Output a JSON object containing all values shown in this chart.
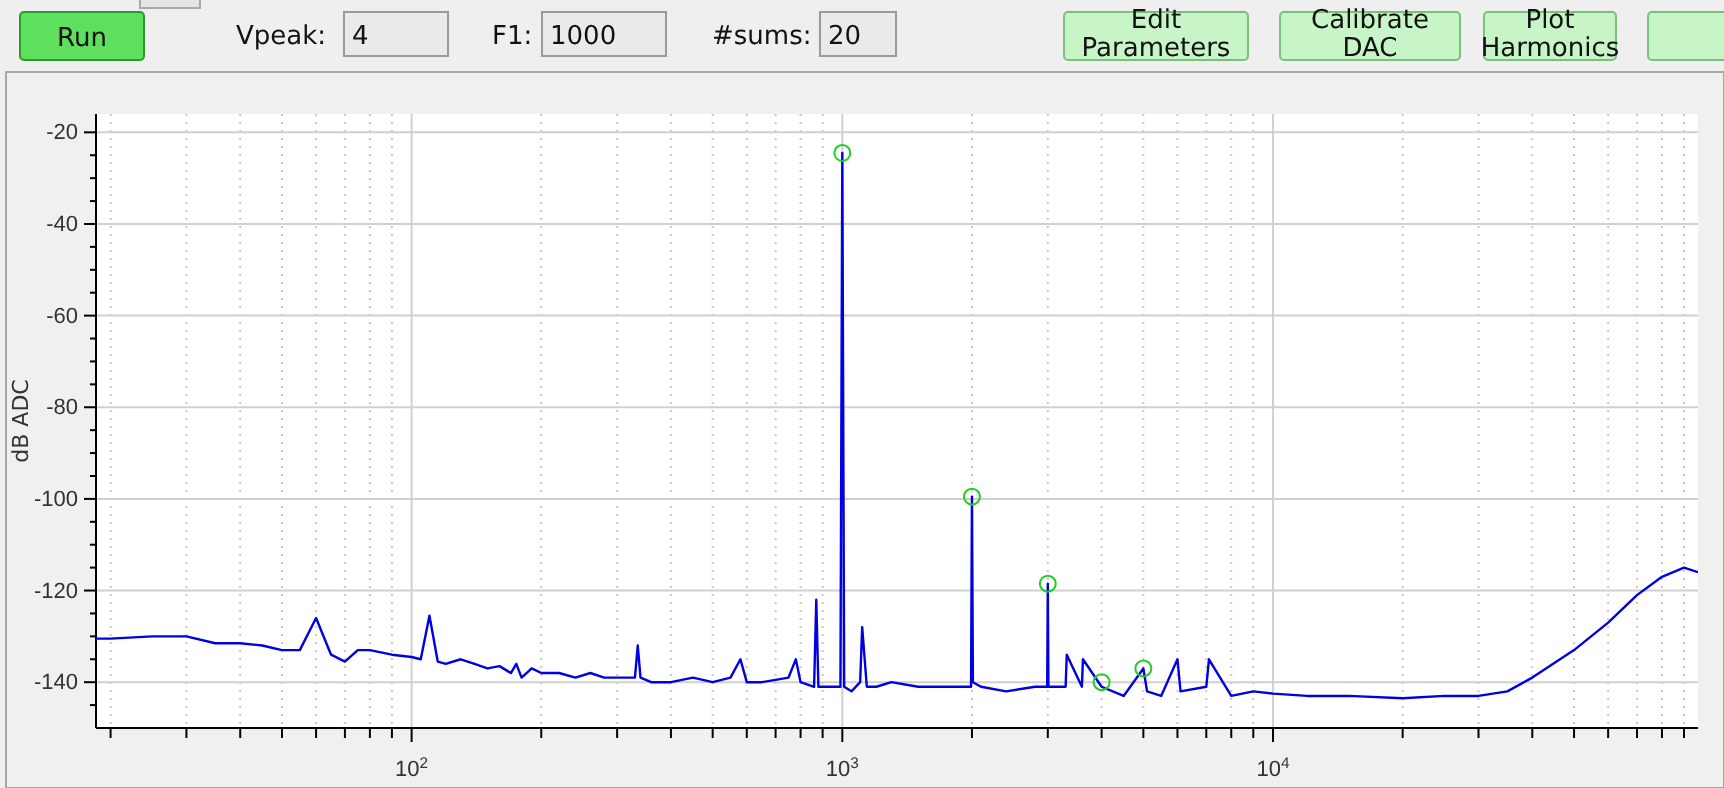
{
  "chart_data": {
    "type": "line",
    "ylabel": "dB ADC",
    "annotations": [
      "Run",
      "Vpeak:",
      "4",
      "F1:",
      "1000",
      "#sums:",
      "20",
      "Edit Parameters",
      "Calibrate DAC",
      "Plot Harmonics"
    ],
    "log": "x",
    "grid": true,
    "xlim": [
      18.5,
      97000
    ],
    "ylim": [
      -150,
      -16
    ],
    "xticks": [
      {
        "value": 20,
        "label": null
      },
      {
        "value": 30,
        "label": null
      },
      {
        "value": 40,
        "label": null
      },
      {
        "value": 50,
        "label": null
      },
      {
        "value": 60,
        "label": null
      },
      {
        "value": 70,
        "label": null
      },
      {
        "value": 80,
        "label": null
      },
      {
        "value": 90,
        "label": null
      },
      {
        "value": 100,
        "label": "10$^{2}$"
      },
      {
        "value": 200,
        "label": null
      },
      {
        "value": 300,
        "label": null
      },
      {
        "value": 400,
        "label": null
      },
      {
        "value": 500,
        "label": null
      },
      {
        "value": 600,
        "label": null
      },
      {
        "value": 700,
        "label": null
      },
      {
        "value": 800,
        "label": null
      },
      {
        "value": 900,
        "label": null
      },
      {
        "value": 1000,
        "label": "10$^{3}$"
      },
      {
        "value": 2000,
        "label": null
      },
      {
        "value": 3000,
        "label": null
      },
      {
        "value": 4000,
        "label": null
      },
      {
        "value": 5000,
        "label": null
      },
      {
        "value": 6000,
        "label": null
      },
      {
        "value": 7000,
        "label": null
      },
      {
        "value": 8000,
        "label": null
      },
      {
        "value": 9000,
        "label": null
      },
      {
        "value": 10000,
        "label": "10$^{4}$"
      },
      {
        "value": 20000,
        "label": null
      },
      {
        "value": 30000,
        "label": null
      },
      {
        "value": 40000,
        "label": null
      },
      {
        "value": 50000,
        "label": null
      },
      {
        "value": 60000,
        "label": null
      },
      {
        "value": 70000,
        "label": null
      },
      {
        "value": 80000,
        "label": null
      },
      {
        "value": 90000,
        "label": null
      }
    ],
    "yticks": [
      -20,
      {
        "value": -25,
        "label": null
      },
      {
        "value": -30,
        "label": null
      },
      {
        "value": -35,
        "label": null
      },
      -40,
      {
        "value": -45,
        "label": null
      },
      {
        "value": -50,
        "label": null
      },
      {
        "value": -55,
        "label": null
      },
      -60,
      {
        "value": -65,
        "label": null
      },
      {
        "value": -70,
        "label": null
      },
      {
        "value": -75,
        "label": null
      },
      -80,
      {
        "value": -85,
        "label": null
      },
      {
        "value": -90,
        "label": null
      },
      {
        "value": -95,
        "label": null
      },
      -100,
      {
        "value": -105,
        "label": null
      },
      {
        "value": -110,
        "label": null
      },
      {
        "value": -115,
        "label": null
      },
      -120,
      {
        "value": -125,
        "label": null
      },
      {
        "value": -130,
        "label": null
      },
      {
        "value": -135,
        "label": null
      },
      -140,
      {
        "value": -145,
        "label": null
      }
    ],
    "series": [
      {
        "color": "#0000e0",
        "marker": "none",
        "line_style": "solid",
        "x": [
          18.5,
          20,
          25,
          30,
          35,
          40,
          45,
          50,
          55,
          60,
          65,
          70,
          75,
          80,
          90,
          100,
          105,
          110,
          115,
          120,
          130,
          140,
          150,
          160,
          170,
          175,
          180,
          190,
          200,
          220,
          240,
          260,
          280,
          300,
          330,
          335,
          340,
          360,
          400,
          450,
          500,
          550,
          580,
          600,
          650,
          700,
          750,
          780,
          800,
          860,
          870,
          880,
          900,
          950,
          990,
          1000,
          1010,
          1050,
          1100,
          1112,
          1140,
          1200,
          1300,
          1500,
          1800,
          1990,
          2000,
          2010,
          2100,
          2400,
          2800,
          2990,
          3000,
          3010,
          3300,
          3320,
          3600,
          3620,
          4000,
          4500,
          5000,
          5100,
          5500,
          6000,
          6100,
          7000,
          7100,
          8000,
          9000,
          10000,
          12000,
          15000,
          20000,
          25000,
          30000,
          35000,
          40000,
          50000,
          60000,
          70000,
          80000,
          90000,
          97000
        ],
        "values": [
          -130.5,
          -130.5,
          -130,
          -130,
          -131.5,
          -131.5,
          -132,
          -133,
          -133,
          -126,
          -134,
          -135.5,
          -133,
          -133,
          -134,
          -134.5,
          -135,
          -125.5,
          -135.5,
          -136,
          -135,
          -136,
          -137,
          -136.5,
          -138,
          -136,
          -139,
          -137,
          -138,
          -138,
          -139,
          -138,
          -139,
          -139,
          -139,
          -132,
          -139,
          -140,
          -140,
          -139,
          -140,
          -139,
          -135,
          -140,
          -140,
          -139.5,
          -139,
          -135,
          -140,
          -141,
          -122,
          -141,
          -141,
          -141,
          -141,
          -24.5,
          -141,
          -142,
          -140,
          -128,
          -141,
          -141,
          -140,
          -141,
          -141,
          -141,
          -99.5,
          -140,
          -141,
          -142,
          -141,
          -141,
          -118.5,
          -141,
          -141,
          -134,
          -141,
          -135,
          -141,
          -143,
          -137,
          -142,
          -143,
          -135,
          -142,
          -141,
          -135,
          -143,
          -142,
          -142.5,
          -143,
          -143,
          -143.5,
          -143,
          -143,
          -142,
          -139,
          -133,
          -127,
          -121,
          -117,
          -115,
          -116
        ]
      },
      {
        "type": "scatter",
        "color": "#22cc22",
        "marker": "circle",
        "x": [
          1000,
          2000,
          3000,
          4000,
          5000
        ],
        "values": [
          -24.5,
          -99.5,
          -118.5,
          -140,
          -137
        ]
      }
    ]
  }
}
